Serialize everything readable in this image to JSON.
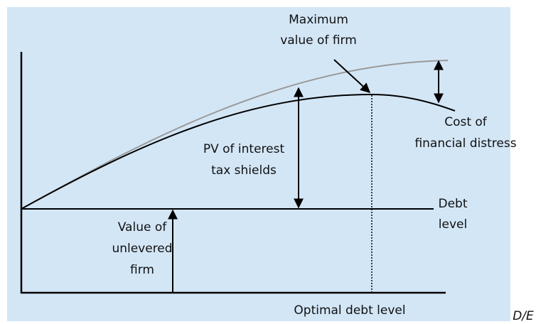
{
  "maximum_label": [
    "Maximum",
    "value of firm"
  ],
  "cost_label": [
    "Cost of",
    "financial distress"
  ],
  "pv_label": [
    "PV of interest",
    "tax shields"
  ],
  "debt_label": [
    "Debt",
    "level"
  ],
  "unlevered_label": [
    "Value of",
    "unlevered",
    "firm"
  ],
  "optimal_label": "Optimal debt level",
  "axis_label": "D/E"
}
